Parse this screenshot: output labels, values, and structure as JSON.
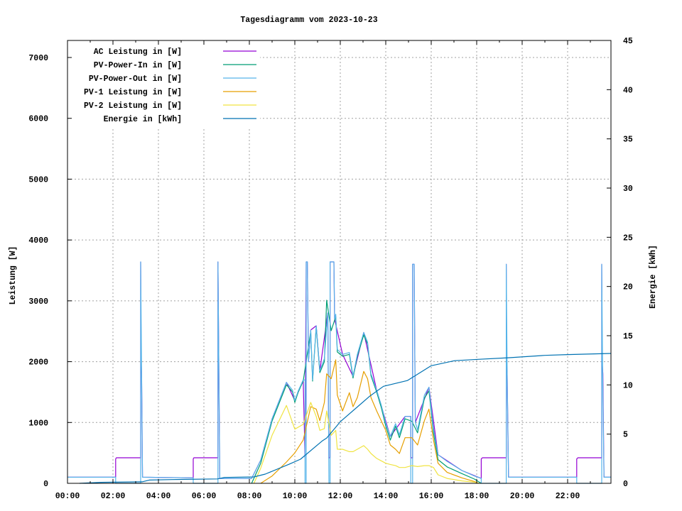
{
  "chart_data": {
    "type": "line",
    "title": "Tagesdiagramm vom 2023-10-23",
    "ylabel": "Leistung [W]",
    "y2label": "Energie [kWh]",
    "xlim": [
      "00:00",
      "23:55"
    ],
    "ylim": [
      0,
      7280
    ],
    "y2lim": [
      0,
      45
    ],
    "grid": true,
    "legend": "top-left",
    "x_ticks": [
      "00:00",
      "02:00",
      "04:00",
      "06:00",
      "08:00",
      "10:00",
      "12:00",
      "14:00",
      "16:00",
      "18:00",
      "20:00",
      "22:00"
    ],
    "y_ticks": [
      "0",
      "1000",
      "2000",
      "3000",
      "4000",
      "5000",
      "6000",
      "7000"
    ],
    "y2_ticks": [
      "0",
      "5",
      "10",
      "15",
      "20",
      "25",
      "30",
      "35",
      "40",
      "45"
    ],
    "x_unit_note": "x values in hours of day",
    "series": [
      {
        "name": "AC Leistung in [W]",
        "color": "#9400d3",
        "axis": "left",
        "points": [
          [
            0,
            100
          ],
          [
            2.12,
            100
          ],
          [
            2.12,
            400
          ],
          [
            2.15,
            420
          ],
          [
            3.22,
            420
          ],
          [
            3.22,
            3640
          ],
          [
            3.24,
            2000
          ],
          [
            3.26,
            1800
          ],
          [
            3.3,
            100
          ],
          [
            5.53,
            90
          ],
          [
            5.53,
            400
          ],
          [
            5.56,
            420
          ],
          [
            6.62,
            420
          ],
          [
            6.62,
            3640
          ],
          [
            6.66,
            1850
          ],
          [
            6.7,
            80
          ],
          [
            8.1,
            80
          ],
          [
            8.5,
            380
          ],
          [
            9.0,
            1060
          ],
          [
            9.63,
            1660
          ],
          [
            10.0,
            1360
          ],
          [
            10.37,
            1700
          ],
          [
            10.45,
            420
          ],
          [
            10.5,
            3640
          ],
          [
            10.55,
            3640
          ],
          [
            10.6,
            2000
          ],
          [
            10.7,
            2520
          ],
          [
            10.94,
            2590
          ],
          [
            11.1,
            1850
          ],
          [
            11.45,
            2800
          ],
          [
            11.5,
            420
          ],
          [
            11.55,
            420
          ],
          [
            11.55,
            3640
          ],
          [
            11.72,
            3640
          ],
          [
            11.75,
            2700
          ],
          [
            12.1,
            2120
          ],
          [
            12.56,
            1760
          ],
          [
            13.03,
            2480
          ],
          [
            13.6,
            1530
          ],
          [
            14.2,
            770
          ],
          [
            14.85,
            1100
          ],
          [
            15.1,
            1100
          ],
          [
            15.1,
            420
          ],
          [
            15.18,
            420
          ],
          [
            15.18,
            3600
          ],
          [
            15.25,
            3600
          ],
          [
            15.3,
            1000
          ],
          [
            15.9,
            1580
          ],
          [
            16.3,
            470
          ],
          [
            17.35,
            210
          ],
          [
            18.2,
            80
          ],
          [
            18.2,
            400
          ],
          [
            18.25,
            420
          ],
          [
            19.3,
            420
          ],
          [
            19.3,
            3600
          ],
          [
            19.32,
            2000
          ],
          [
            19.34,
            1800
          ],
          [
            19.4,
            100
          ],
          [
            22.4,
            100
          ],
          [
            22.4,
            400
          ],
          [
            22.45,
            420
          ],
          [
            23.5,
            420
          ],
          [
            23.5,
            3600
          ],
          [
            23.52,
            2000
          ],
          [
            23.55,
            1800
          ],
          [
            23.6,
            100
          ],
          [
            23.92,
            100
          ]
        ]
      },
      {
        "name": "PV-Power-In in [W]",
        "color": "#009e73",
        "axis": "left",
        "points": [
          [
            8.1,
            0
          ],
          [
            8.5,
            330
          ],
          [
            9.0,
            1025
          ],
          [
            9.63,
            1620
          ],
          [
            9.9,
            1500
          ],
          [
            10.0,
            1330
          ],
          [
            10.15,
            1500
          ],
          [
            10.37,
            1680
          ],
          [
            10.7,
            2500
          ],
          [
            10.78,
            1680
          ],
          [
            10.94,
            2570
          ],
          [
            11.1,
            1820
          ],
          [
            11.3,
            2000
          ],
          [
            11.4,
            3010
          ],
          [
            11.6,
            2510
          ],
          [
            11.8,
            2740
          ],
          [
            11.87,
            2160
          ],
          [
            12.1,
            2090
          ],
          [
            12.4,
            2120
          ],
          [
            12.56,
            1730
          ],
          [
            12.75,
            2090
          ],
          [
            13.03,
            2440
          ],
          [
            13.2,
            2290
          ],
          [
            13.35,
            1770
          ],
          [
            13.6,
            1500
          ],
          [
            13.8,
            1250
          ],
          [
            14.0,
            940
          ],
          [
            14.2,
            710
          ],
          [
            14.43,
            940
          ],
          [
            14.6,
            750
          ],
          [
            14.85,
            1060
          ],
          [
            15.15,
            1020
          ],
          [
            15.4,
            830
          ],
          [
            15.7,
            1400
          ],
          [
            15.9,
            1520
          ],
          [
            16.1,
            830
          ],
          [
            16.3,
            390
          ],
          [
            16.7,
            270
          ],
          [
            17.35,
            160
          ],
          [
            17.9,
            70
          ],
          [
            18.2,
            0
          ]
        ]
      },
      {
        "name": "PV-Power-Out in [W]",
        "color": "#56b4e9",
        "axis": "left",
        "points": [
          [
            0,
            100
          ],
          [
            2.12,
            100
          ],
          [
            2.12,
            0
          ],
          [
            3.22,
            0
          ],
          [
            3.22,
            3640
          ],
          [
            3.26,
            1850
          ],
          [
            3.3,
            100
          ],
          [
            5.53,
            90
          ],
          [
            5.53,
            0
          ],
          [
            6.62,
            0
          ],
          [
            6.62,
            3640
          ],
          [
            6.66,
            1850
          ],
          [
            6.7,
            80
          ],
          [
            8.1,
            80
          ],
          [
            8.5,
            380
          ],
          [
            9.0,
            1060
          ],
          [
            9.63,
            1660
          ],
          [
            9.9,
            1530
          ],
          [
            10.0,
            1360
          ],
          [
            10.15,
            1520
          ],
          [
            10.37,
            1700
          ],
          [
            10.45,
            1700
          ],
          [
            10.45,
            0
          ],
          [
            10.5,
            0
          ],
          [
            10.5,
            3640
          ],
          [
            10.55,
            3640
          ],
          [
            10.6,
            2000
          ],
          [
            10.7,
            2520
          ],
          [
            10.78,
            1700
          ],
          [
            10.94,
            2590
          ],
          [
            11.1,
            1850
          ],
          [
            11.3,
            2050
          ],
          [
            11.45,
            2800
          ],
          [
            11.5,
            0
          ],
          [
            11.55,
            0
          ],
          [
            11.55,
            3640
          ],
          [
            11.72,
            3640
          ],
          [
            11.75,
            2700
          ],
          [
            11.8,
            2780
          ],
          [
            11.87,
            2200
          ],
          [
            12.1,
            2120
          ],
          [
            12.4,
            2150
          ],
          [
            12.56,
            1760
          ],
          [
            12.75,
            2120
          ],
          [
            13.03,
            2480
          ],
          [
            13.2,
            2320
          ],
          [
            13.35,
            1800
          ],
          [
            13.6,
            1530
          ],
          [
            13.8,
            1290
          ],
          [
            14.0,
            990
          ],
          [
            14.2,
            770
          ],
          [
            14.43,
            980
          ],
          [
            14.6,
            800
          ],
          [
            14.85,
            1100
          ],
          [
            15.1,
            1100
          ],
          [
            15.1,
            0
          ],
          [
            15.18,
            0
          ],
          [
            15.18,
            3600
          ],
          [
            15.25,
            3600
          ],
          [
            15.3,
            1000
          ],
          [
            15.4,
            880
          ],
          [
            15.7,
            1450
          ],
          [
            15.9,
            1580
          ],
          [
            16.1,
            900
          ],
          [
            16.3,
            470
          ],
          [
            16.7,
            360
          ],
          [
            17.35,
            210
          ],
          [
            17.9,
            120
          ],
          [
            18.2,
            80
          ],
          [
            18.2,
            0
          ],
          [
            19.3,
            0
          ],
          [
            19.3,
            3600
          ],
          [
            19.34,
            1800
          ],
          [
            19.4,
            100
          ],
          [
            22.4,
            100
          ],
          [
            22.4,
            0
          ],
          [
            23.5,
            0
          ],
          [
            23.5,
            3600
          ],
          [
            23.54,
            1800
          ],
          [
            23.6,
            100
          ],
          [
            23.92,
            100
          ]
        ]
      },
      {
        "name": "PV-1 Leistung in [W]",
        "color": "#e69f00",
        "axis": "left",
        "points": [
          [
            8.5,
            0
          ],
          [
            9.0,
            120
          ],
          [
            9.63,
            350
          ],
          [
            10.0,
            500
          ],
          [
            10.37,
            710
          ],
          [
            10.7,
            1260
          ],
          [
            10.94,
            1220
          ],
          [
            11.1,
            1030
          ],
          [
            11.3,
            1330
          ],
          [
            11.4,
            1800
          ],
          [
            11.6,
            1720
          ],
          [
            11.8,
            2030
          ],
          [
            11.87,
            1450
          ],
          [
            12.1,
            1190
          ],
          [
            12.4,
            1490
          ],
          [
            12.56,
            1260
          ],
          [
            12.75,
            1410
          ],
          [
            13.03,
            1840
          ],
          [
            13.2,
            1720
          ],
          [
            13.35,
            1410
          ],
          [
            13.6,
            1190
          ],
          [
            13.8,
            1030
          ],
          [
            14.0,
            870
          ],
          [
            14.2,
            630
          ],
          [
            14.43,
            560
          ],
          [
            14.6,
            490
          ],
          [
            14.85,
            750
          ],
          [
            15.15,
            750
          ],
          [
            15.4,
            630
          ],
          [
            15.7,
            1030
          ],
          [
            15.9,
            1220
          ],
          [
            16.1,
            710
          ],
          [
            16.3,
            330
          ],
          [
            16.7,
            180
          ],
          [
            17.35,
            90
          ],
          [
            17.9,
            30
          ],
          [
            18.1,
            0
          ]
        ]
      },
      {
        "name": "PV-2 Leistung in [W]",
        "color": "#f0e442",
        "axis": "left",
        "points": [
          [
            8.2,
            0
          ],
          [
            8.5,
            250
          ],
          [
            9.0,
            790
          ],
          [
            9.63,
            1280
          ],
          [
            10.0,
            890
          ],
          [
            10.37,
            970
          ],
          [
            10.7,
            1330
          ],
          [
            10.94,
            1100
          ],
          [
            11.1,
            870
          ],
          [
            11.3,
            900
          ],
          [
            11.4,
            1190
          ],
          [
            11.6,
            790
          ],
          [
            11.8,
            870
          ],
          [
            11.87,
            560
          ],
          [
            12.1,
            560
          ],
          [
            12.4,
            520
          ],
          [
            12.56,
            520
          ],
          [
            12.75,
            560
          ],
          [
            13.03,
            620
          ],
          [
            13.2,
            560
          ],
          [
            13.35,
            490
          ],
          [
            13.6,
            410
          ],
          [
            13.8,
            370
          ],
          [
            14.0,
            330
          ],
          [
            14.2,
            310
          ],
          [
            14.43,
            290
          ],
          [
            14.6,
            260
          ],
          [
            14.85,
            260
          ],
          [
            15.15,
            290
          ],
          [
            15.4,
            275
          ],
          [
            15.7,
            290
          ],
          [
            15.9,
            290
          ],
          [
            16.1,
            260
          ],
          [
            16.3,
            140
          ],
          [
            16.7,
            80
          ],
          [
            17.35,
            40
          ],
          [
            17.9,
            20
          ],
          [
            18.1,
            0
          ]
        ]
      },
      {
        "name": "Energie in [kWh]",
        "color": "#0072b2",
        "axis": "right",
        "points": [
          [
            0.53,
            0
          ],
          [
            1.47,
            0.1
          ],
          [
            3.28,
            0.15
          ],
          [
            3.6,
            0.33
          ],
          [
            4.6,
            0.38
          ],
          [
            6.6,
            0.45
          ],
          [
            6.9,
            0.6
          ],
          [
            8.2,
            0.65
          ],
          [
            8.7,
            0.94
          ],
          [
            9.75,
            1.94
          ],
          [
            10.25,
            2.45
          ],
          [
            11.2,
            4.3
          ],
          [
            11.4,
            4.6
          ],
          [
            12.0,
            6.26
          ],
          [
            13.3,
            8.86
          ],
          [
            13.9,
            9.86
          ],
          [
            14.95,
            10.44
          ],
          [
            16.0,
            11.95
          ],
          [
            17.03,
            12.46
          ],
          [
            18.06,
            12.6
          ],
          [
            19.375,
            12.76
          ],
          [
            21.0,
            13.0
          ],
          [
            22.0,
            13.08
          ],
          [
            23.92,
            13.2
          ]
        ]
      }
    ]
  }
}
